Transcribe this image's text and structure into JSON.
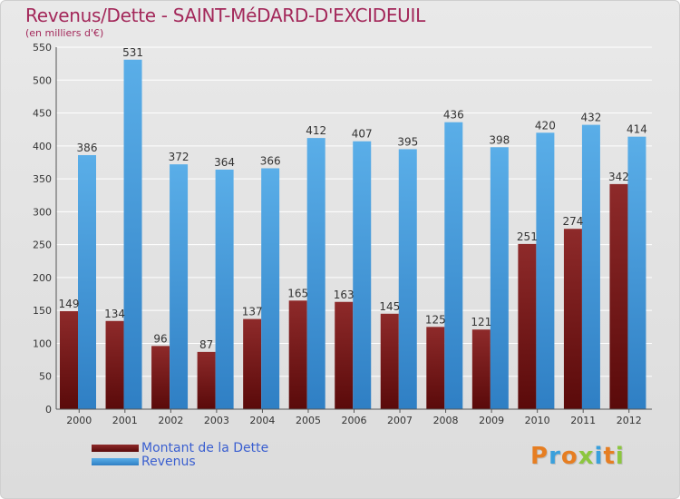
{
  "header": {
    "title": "Revenus/Dette - SAINT-MéDARD-D'EXCIDEUIL",
    "subtitle": "(en milliers d'€)"
  },
  "legend": {
    "debt_label": "Montant de la Dette",
    "revenue_label": "Revenus"
  },
  "logo": {
    "text": "Proxiti"
  },
  "colors": {
    "title": "#a3285a",
    "debt_bar_dark": "#5a0a0a",
    "debt_bar_light": "#8e2a2a",
    "revenue_bar_dark": "#2f7fc4",
    "revenue_bar_light": "#5aaee8",
    "legend_text": "#3a5fd0"
  },
  "chart_data": {
    "type": "bar",
    "categories": [
      "2000",
      "2001",
      "2002",
      "2003",
      "2004",
      "2005",
      "2006",
      "2007",
      "2008",
      "2009",
      "2010",
      "2011",
      "2012"
    ],
    "series": [
      {
        "name": "Montant de la Dette",
        "values": [
          149,
          134,
          96,
          87,
          137,
          165,
          163,
          145,
          125,
          121,
          251,
          274,
          342
        ]
      },
      {
        "name": "Revenus",
        "values": [
          386,
          531,
          372,
          364,
          366,
          412,
          407,
          395,
          436,
          398,
          420,
          432,
          414
        ]
      }
    ],
    "ylim": [
      0,
      550
    ],
    "yticks": [
      0,
      50,
      100,
      150,
      200,
      250,
      300,
      350,
      400,
      450,
      500,
      550
    ],
    "grid": true,
    "legend_position": "bottom-left"
  }
}
